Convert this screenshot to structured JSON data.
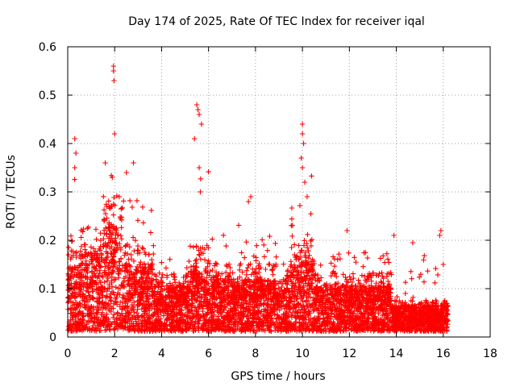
{
  "chart_data": {
    "type": "scatter",
    "title": "Day 174 of 2025, Rate Of TEC Index for receiver iqal",
    "xlabel": "GPS time / hours",
    "ylabel": "ROTI / TECUs",
    "xlim": [
      0,
      18
    ],
    "ylim": [
      0,
      0.6
    ],
    "x_ticks": [
      0,
      2,
      4,
      6,
      8,
      10,
      12,
      14,
      16,
      18
    ],
    "y_ticks": [
      0,
      0.1,
      0.2,
      0.3,
      0.4,
      0.5,
      0.6
    ],
    "x_tick_labels": [
      "0",
      "2",
      "4",
      "6",
      "8",
      "10",
      "12",
      "14",
      "16",
      "18"
    ],
    "y_tick_labels": [
      "0",
      "0.1",
      "0.2",
      "0.3",
      "0.4",
      "0.5",
      "0.6"
    ],
    "grid": true,
    "marker": "+",
    "color": "#ff0000",
    "data_coverage_hours": [
      0,
      16.2
    ],
    "series": [
      {
        "name": "ROTI",
        "envelope": [
          {
            "x_start": 0.0,
            "x_end": 0.5,
            "y_typical": 0.1,
            "y_max": 0.41
          },
          {
            "x_start": 0.5,
            "x_end": 1.5,
            "y_typical": 0.12,
            "y_max": 0.26
          },
          {
            "x_start": 1.5,
            "x_end": 2.3,
            "y_typical": 0.16,
            "y_max": 0.56
          },
          {
            "x_start": 2.3,
            "x_end": 3.7,
            "y_typical": 0.1,
            "y_max": 0.36
          },
          {
            "x_start": 3.7,
            "x_end": 5.2,
            "y_typical": 0.07,
            "y_max": 0.22
          },
          {
            "x_start": 5.2,
            "x_end": 6.0,
            "y_typical": 0.1,
            "y_max": 0.48
          },
          {
            "x_start": 6.0,
            "x_end": 9.5,
            "y_typical": 0.08,
            "y_max": 0.29
          },
          {
            "x_start": 9.5,
            "x_end": 10.5,
            "y_typical": 0.11,
            "y_max": 0.44
          },
          {
            "x_start": 10.5,
            "x_end": 13.8,
            "y_typical": 0.07,
            "y_max": 0.22
          },
          {
            "x_start": 13.8,
            "x_end": 16.2,
            "y_typical": 0.04,
            "y_max": 0.22
          }
        ],
        "points": [
          {
            "x": 0.3,
            "y": 0.41
          },
          {
            "x": 0.35,
            "y": 0.38
          },
          {
            "x": 0.3,
            "y": 0.35
          },
          {
            "x": 1.6,
            "y": 0.36
          },
          {
            "x": 1.9,
            "y": 0.33
          },
          {
            "x": 1.95,
            "y": 0.56
          },
          {
            "x": 1.95,
            "y": 0.55
          },
          {
            "x": 1.97,
            "y": 0.53
          },
          {
            "x": 2.0,
            "y": 0.42
          },
          {
            "x": 2.5,
            "y": 0.34
          },
          {
            "x": 2.8,
            "y": 0.36
          },
          {
            "x": 5.5,
            "y": 0.48
          },
          {
            "x": 5.55,
            "y": 0.47
          },
          {
            "x": 5.6,
            "y": 0.46
          },
          {
            "x": 5.4,
            "y": 0.41
          },
          {
            "x": 5.7,
            "y": 0.44
          },
          {
            "x": 5.6,
            "y": 0.35
          },
          {
            "x": 5.65,
            "y": 0.3
          },
          {
            "x": 7.8,
            "y": 0.29
          },
          {
            "x": 7.7,
            "y": 0.28
          },
          {
            "x": 10.0,
            "y": 0.44
          },
          {
            "x": 10.0,
            "y": 0.42
          },
          {
            "x": 10.05,
            "y": 0.4
          },
          {
            "x": 9.95,
            "y": 0.37
          },
          {
            "x": 10.0,
            "y": 0.35
          },
          {
            "x": 10.1,
            "y": 0.32
          },
          {
            "x": 10.2,
            "y": 0.29
          },
          {
            "x": 11.9,
            "y": 0.22
          },
          {
            "x": 13.9,
            "y": 0.21
          },
          {
            "x": 14.7,
            "y": 0.195
          },
          {
            "x": 15.9,
            "y": 0.22
          },
          {
            "x": 15.85,
            "y": 0.21
          },
          {
            "x": 16.0,
            "y": 0.15
          }
        ]
      }
    ]
  }
}
